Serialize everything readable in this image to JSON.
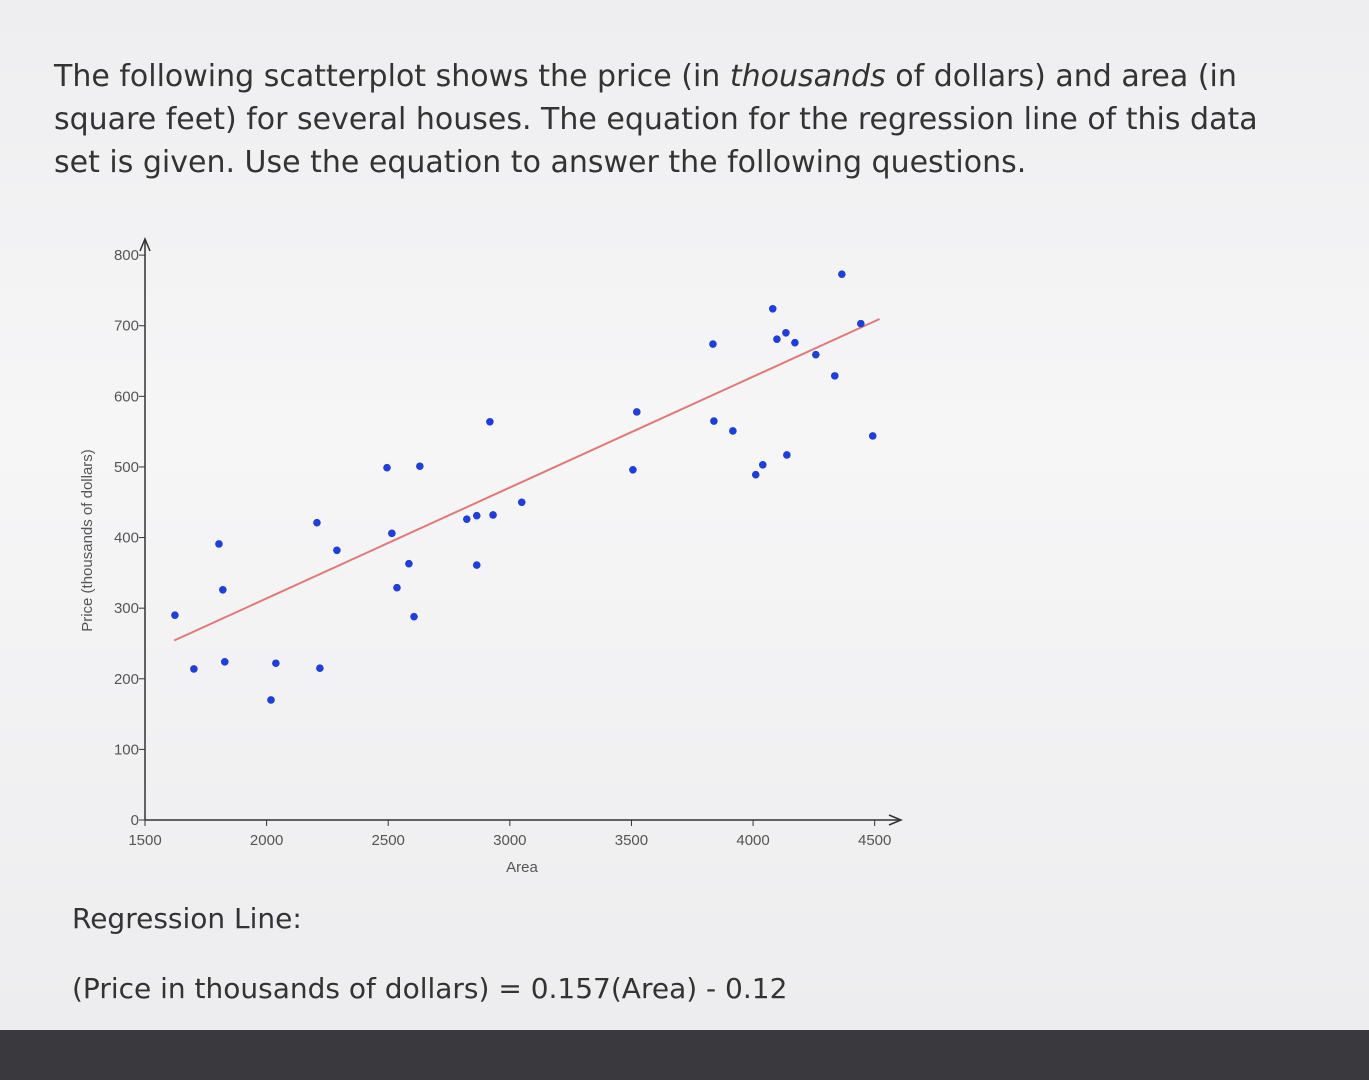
{
  "question": {
    "text": [
      "The following scatterplot shows the price (in ",
      "thousands",
      " of dollars) and area (in square feet) for several houses.  The equation for the regression line of this data set is given.  Use the equation to answer the following questions."
    ]
  },
  "chart_data": {
    "type": "scatter",
    "x_label": "Area",
    "y_label": "Price (thousands of dollars)",
    "xlim": [
      1500,
      4600
    ],
    "ylim": [
      0,
      820
    ],
    "xticks": [
      1500,
      2000,
      2500,
      3000,
      3500,
      4000,
      4500
    ],
    "yticks": [
      0,
      100,
      200,
      300,
      400,
      500,
      600,
      700,
      800
    ],
    "series": [
      {
        "color": "#1f3fd6",
        "x": [
          1623,
          1701,
          1804,
          1820,
          1828,
          2018,
          2038,
          2207,
          2219,
          2289,
          2495,
          2630,
          2515,
          2536,
          2585,
          2606,
          2823,
          2864,
          2864,
          2918,
          2931,
          3049,
          3522,
          3506,
          3835,
          3839,
          3917,
          4011,
          4040,
          4139,
          4081,
          4098,
          4135,
          4172,
          4258,
          4336,
          4365,
          4443,
          4492
        ],
        "y": [
          290,
          214,
          391,
          326,
          224,
          170,
          222,
          421,
          215,
          382,
          499,
          501,
          406,
          329,
          363,
          288,
          426,
          431,
          361,
          564,
          432,
          450,
          578,
          496,
          674,
          565,
          551,
          489,
          503,
          517,
          724,
          681,
          690,
          676,
          659,
          629,
          773,
          703,
          544
        ]
      }
    ],
    "regression_line": {
      "color": "#e07a7a",
      "x": [
        1620,
        4520
      ],
      "y": [
        254.2,
        709.5
      ]
    }
  },
  "regression_text": {
    "label": "Regression Line:",
    "equation": "(Price in thousands of dollars) = 0.157(Area) - 0.12"
  }
}
